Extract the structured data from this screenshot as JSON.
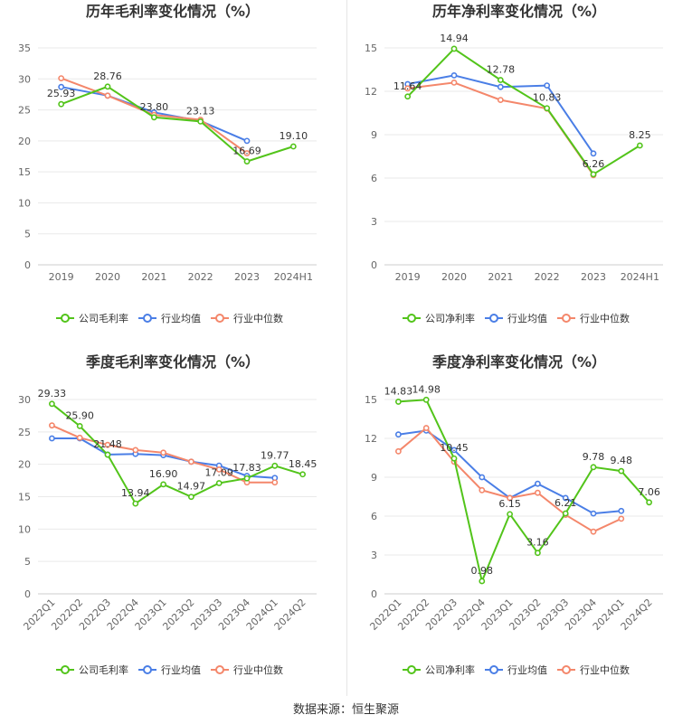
{
  "source": "数据来源：恒生聚源",
  "legend_labels": {
    "company_gross": "公司毛利率",
    "company_net": "公司净利率",
    "industry_avg": "行业均值",
    "industry_median": "行业中位数"
  },
  "colors": {
    "company": "#52c41a",
    "industry_avg": "#4a7ee6",
    "industry_median": "#f4876b",
    "grid": "#e9e9e9",
    "axis": "#cccccc",
    "label": "#333333"
  },
  "chart_data": [
    {
      "type": "line",
      "title": "历年毛利率变化情况（%）",
      "categories": [
        "2019",
        "2020",
        "2021",
        "2022",
        "2023",
        "2024H1"
      ],
      "ylim": [
        0,
        35
      ],
      "yticks": [
        0,
        5,
        10,
        15,
        20,
        25,
        30,
        35
      ],
      "rotate_x": false,
      "series": [
        {
          "name": "公司毛利率",
          "values": [
            25.93,
            28.76,
            23.8,
            23.13,
            16.69,
            19.1
          ],
          "labels": [
            "25.93",
            "28.76",
            "23.80",
            "23.13",
            "16.69",
            "19.10"
          ]
        },
        {
          "name": "行业均值",
          "values": [
            28.7,
            27.3,
            24.6,
            23.2,
            20.0,
            null
          ]
        },
        {
          "name": "行业中位数",
          "values": [
            30.1,
            27.3,
            24.2,
            23.4,
            18.0,
            null
          ]
        }
      ]
    },
    {
      "type": "line",
      "title": "历年净利率变化情况（%）",
      "categories": [
        "2019",
        "2020",
        "2021",
        "2022",
        "2023",
        "2024H1"
      ],
      "ylim": [
        0,
        15
      ],
      "yticks": [
        0,
        3,
        6,
        9,
        12,
        15
      ],
      "rotate_x": false,
      "series": [
        {
          "name": "公司净利率",
          "values": [
            11.64,
            14.94,
            12.78,
            10.83,
            6.26,
            8.25
          ],
          "labels": [
            "11.64",
            "14.94",
            "12.78",
            "10.83",
            "6.26",
            "8.25"
          ]
        },
        {
          "name": "行业均值",
          "values": [
            12.5,
            13.1,
            12.3,
            12.4,
            7.7,
            null
          ]
        },
        {
          "name": "行业中位数",
          "values": [
            12.2,
            12.6,
            11.4,
            10.8,
            6.2,
            null
          ]
        }
      ]
    },
    {
      "type": "line",
      "title": "季度毛利率变化情况（%）",
      "categories": [
        "2022Q1",
        "2022Q2",
        "2022Q3",
        "2022Q4",
        "2023Q1",
        "2023Q2",
        "2023Q3",
        "2023Q4",
        "2024Q1",
        "2024Q2"
      ],
      "ylim": [
        0,
        30
      ],
      "yticks": [
        0,
        5,
        10,
        15,
        20,
        25,
        30
      ],
      "rotate_x": true,
      "series": [
        {
          "name": "公司毛利率",
          "values": [
            29.33,
            25.9,
            21.48,
            13.94,
            16.9,
            14.97,
            17.09,
            17.83,
            19.77,
            18.45
          ],
          "labels": [
            "29.33",
            "25.90",
            "21.48",
            "13.94",
            "16.90",
            "14.97",
            "17.09",
            "17.83",
            "19.77",
            "18.45"
          ]
        },
        {
          "name": "行业均值",
          "values": [
            24.0,
            24.0,
            21.5,
            21.6,
            21.4,
            20.4,
            19.8,
            18.2,
            17.9,
            null
          ]
        },
        {
          "name": "行业中位数",
          "values": [
            26.0,
            24.1,
            23.0,
            22.2,
            21.8,
            20.4,
            19.2,
            17.2,
            17.2,
            null
          ]
        }
      ]
    },
    {
      "type": "line",
      "title": "季度净利率变化情况（%）",
      "categories": [
        "2022Q1",
        "2022Q2",
        "2022Q3",
        "2022Q4",
        "2023Q1",
        "2023Q2",
        "2023Q3",
        "2023Q4",
        "2024Q1",
        "2024Q2"
      ],
      "ylim": [
        0,
        15
      ],
      "yticks": [
        0,
        3,
        6,
        9,
        12,
        15
      ],
      "rotate_x": true,
      "series": [
        {
          "name": "公司净利率",
          "values": [
            14.83,
            14.98,
            10.45,
            0.98,
            6.15,
            3.16,
            6.21,
            9.78,
            9.48,
            7.06
          ],
          "labels": [
            "14.83",
            "14.98",
            "10.45",
            "0.98",
            "6.15",
            "3.16",
            "6.21",
            "9.78",
            "9.48",
            "7.06"
          ]
        },
        {
          "name": "行业均值",
          "values": [
            12.3,
            12.6,
            11.1,
            9.0,
            7.4,
            8.5,
            7.4,
            6.2,
            6.4,
            null
          ]
        },
        {
          "name": "行业中位数",
          "values": [
            11.0,
            12.8,
            10.2,
            8.0,
            7.4,
            7.8,
            6.1,
            4.8,
            5.8,
            null
          ]
        }
      ]
    }
  ]
}
